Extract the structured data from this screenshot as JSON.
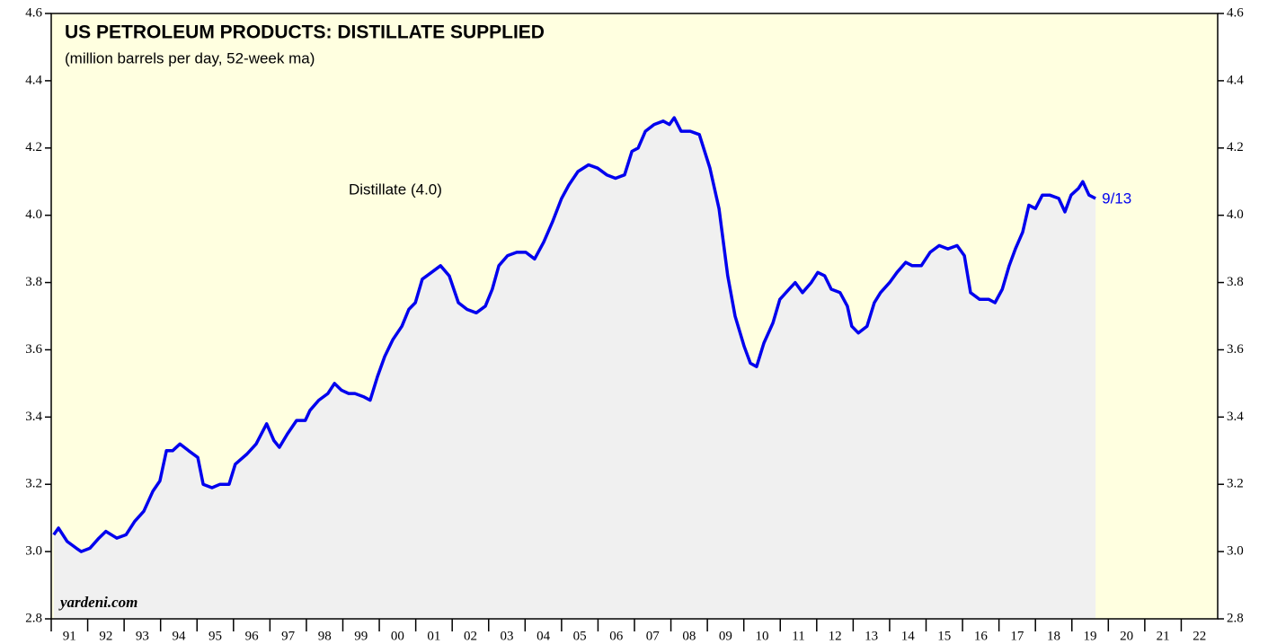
{
  "chart_data": {
    "type": "line",
    "title": "US PETROLEUM PRODUCTS: DISTILLATE SUPPLIED",
    "subtitle": "(million barrels per day, 52-week ma)",
    "source": "yardeni.com",
    "end_label": "9/13",
    "xlim": [
      1991,
      2023
    ],
    "xticks": [
      {
        "value": 1991,
        "label": "91"
      },
      {
        "value": 1992,
        "label": "92"
      },
      {
        "value": 1993,
        "label": "93"
      },
      {
        "value": 1994,
        "label": "94"
      },
      {
        "value": 1995,
        "label": "95"
      },
      {
        "value": 1996,
        "label": "96"
      },
      {
        "value": 1997,
        "label": "97"
      },
      {
        "value": 1998,
        "label": "98"
      },
      {
        "value": 1999,
        "label": "99"
      },
      {
        "value": 2000,
        "label": "00"
      },
      {
        "value": 2001,
        "label": "01"
      },
      {
        "value": 2002,
        "label": "02"
      },
      {
        "value": 2003,
        "label": "03"
      },
      {
        "value": 2004,
        "label": "04"
      },
      {
        "value": 2005,
        "label": "05"
      },
      {
        "value": 2006,
        "label": "06"
      },
      {
        "value": 2007,
        "label": "07"
      },
      {
        "value": 2008,
        "label": "08"
      },
      {
        "value": 2009,
        "label": "09"
      },
      {
        "value": 2010,
        "label": "10"
      },
      {
        "value": 2011,
        "label": "11"
      },
      {
        "value": 2012,
        "label": "12"
      },
      {
        "value": 2013,
        "label": "13"
      },
      {
        "value": 2014,
        "label": "14"
      },
      {
        "value": 2015,
        "label": "15"
      },
      {
        "value": 2016,
        "label": "16"
      },
      {
        "value": 2017,
        "label": "17"
      },
      {
        "value": 2018,
        "label": "18"
      },
      {
        "value": 2019,
        "label": "19"
      },
      {
        "value": 2020,
        "label": "20"
      },
      {
        "value": 2021,
        "label": "21"
      },
      {
        "value": 2022,
        "label": "22"
      }
    ],
    "ylim": [
      2.8,
      4.6
    ],
    "yticks": [
      2.8,
      {
        "value": 3,
        "label": "3.0"
      },
      3.2,
      3.4,
      3.6,
      3.8,
      {
        "value": 4,
        "label": "4.0"
      },
      4.2,
      4.4,
      4.6
    ],
    "background": "#ffffe0",
    "area_color": "#f0f0f0",
    "x": [
      1991.07,
      1991.2,
      1991.44,
      1991.69,
      1991.82,
      1992.06,
      1992.31,
      1992.5,
      1992.8,
      1993.05,
      1993.29,
      1993.54,
      1993.79,
      1993.98,
      1994.16,
      1994.33,
      1994.53,
      1994.77,
      1995.02,
      1995.17,
      1995.41,
      1995.63,
      1995.88,
      1996.05,
      1996.37,
      1996.62,
      1996.91,
      1997.11,
      1997.26,
      1997.48,
      1997.73,
      1997.97,
      1998.1,
      1998.34,
      1998.59,
      1998.77,
      1998.96,
      1999.16,
      1999.33,
      1999.58,
      1999.75,
      1999.95,
      2000.15,
      2000.37,
      2000.62,
      2000.81,
      2000.99,
      2001.18,
      2001.43,
      2001.68,
      2001.92,
      2002.17,
      2002.41,
      2002.66,
      2002.91,
      2003.1,
      2003.28,
      2003.52,
      2003.77,
      2004.02,
      2004.26,
      2004.51,
      2004.75,
      2005.0,
      2005.2,
      2005.45,
      2005.74,
      2005.99,
      2006.24,
      2006.48,
      2006.73,
      2006.93,
      2007.1,
      2007.3,
      2007.54,
      2007.79,
      2007.96,
      2008.09,
      2008.28,
      2008.53,
      2008.78,
      2009.07,
      2009.32,
      2009.56,
      2009.76,
      2010.01,
      2010.18,
      2010.35,
      2010.55,
      2010.8,
      2010.99,
      2011.24,
      2011.41,
      2011.61,
      2011.85,
      2012.03,
      2012.22,
      2012.4,
      2012.64,
      2012.84,
      2012.96,
      2013.14,
      2013.38,
      2013.58,
      2013.75,
      2014.0,
      2014.2,
      2014.44,
      2014.62,
      2014.87,
      2015.11,
      2015.36,
      2015.6,
      2015.85,
      2016.05,
      2016.22,
      2016.47,
      2016.72,
      2016.89,
      2017.09,
      2017.28,
      2017.45,
      2017.65,
      2017.82,
      2018.0,
      2018.19,
      2018.39,
      2018.64,
      2018.81,
      2018.98,
      2019.18,
      2019.3,
      2019.47,
      2019.65
    ],
    "series": [
      {
        "name": "Distillate (4.0)",
        "color": "#0000ee",
        "values": [
          3.05,
          3.07,
          3.03,
          3.01,
          3.0,
          3.01,
          3.04,
          3.06,
          3.04,
          3.05,
          3.09,
          3.12,
          3.18,
          3.21,
          3.3,
          3.3,
          3.32,
          3.3,
          3.28,
          3.2,
          3.19,
          3.2,
          3.2,
          3.26,
          3.29,
          3.32,
          3.38,
          3.33,
          3.31,
          3.35,
          3.39,
          3.39,
          3.42,
          3.45,
          3.47,
          3.5,
          3.48,
          3.47,
          3.47,
          3.46,
          3.45,
          3.52,
          3.58,
          3.63,
          3.67,
          3.72,
          3.74,
          3.81,
          3.83,
          3.85,
          3.82,
          3.74,
          3.72,
          3.71,
          3.73,
          3.78,
          3.85,
          3.88,
          3.89,
          3.89,
          3.87,
          3.92,
          3.98,
          4.05,
          4.09,
          4.13,
          4.15,
          4.14,
          4.12,
          4.11,
          4.12,
          4.19,
          4.2,
          4.25,
          4.27,
          4.28,
          4.27,
          4.29,
          4.25,
          4.25,
          4.24,
          4.14,
          4.02,
          3.82,
          3.7,
          3.61,
          3.56,
          3.55,
          3.62,
          3.68,
          3.75,
          3.78,
          3.8,
          3.77,
          3.8,
          3.83,
          3.82,
          3.78,
          3.77,
          3.73,
          3.67,
          3.65,
          3.67,
          3.74,
          3.77,
          3.8,
          3.83,
          3.86,
          3.85,
          3.85,
          3.89,
          3.91,
          3.9,
          3.91,
          3.88,
          3.77,
          3.75,
          3.75,
          3.74,
          3.78,
          3.85,
          3.9,
          3.95,
          4.03,
          4.02,
          4.06,
          4.06,
          4.05,
          4.01,
          4.06,
          4.08,
          4.1,
          4.06,
          4.05
        ]
      }
    ]
  }
}
